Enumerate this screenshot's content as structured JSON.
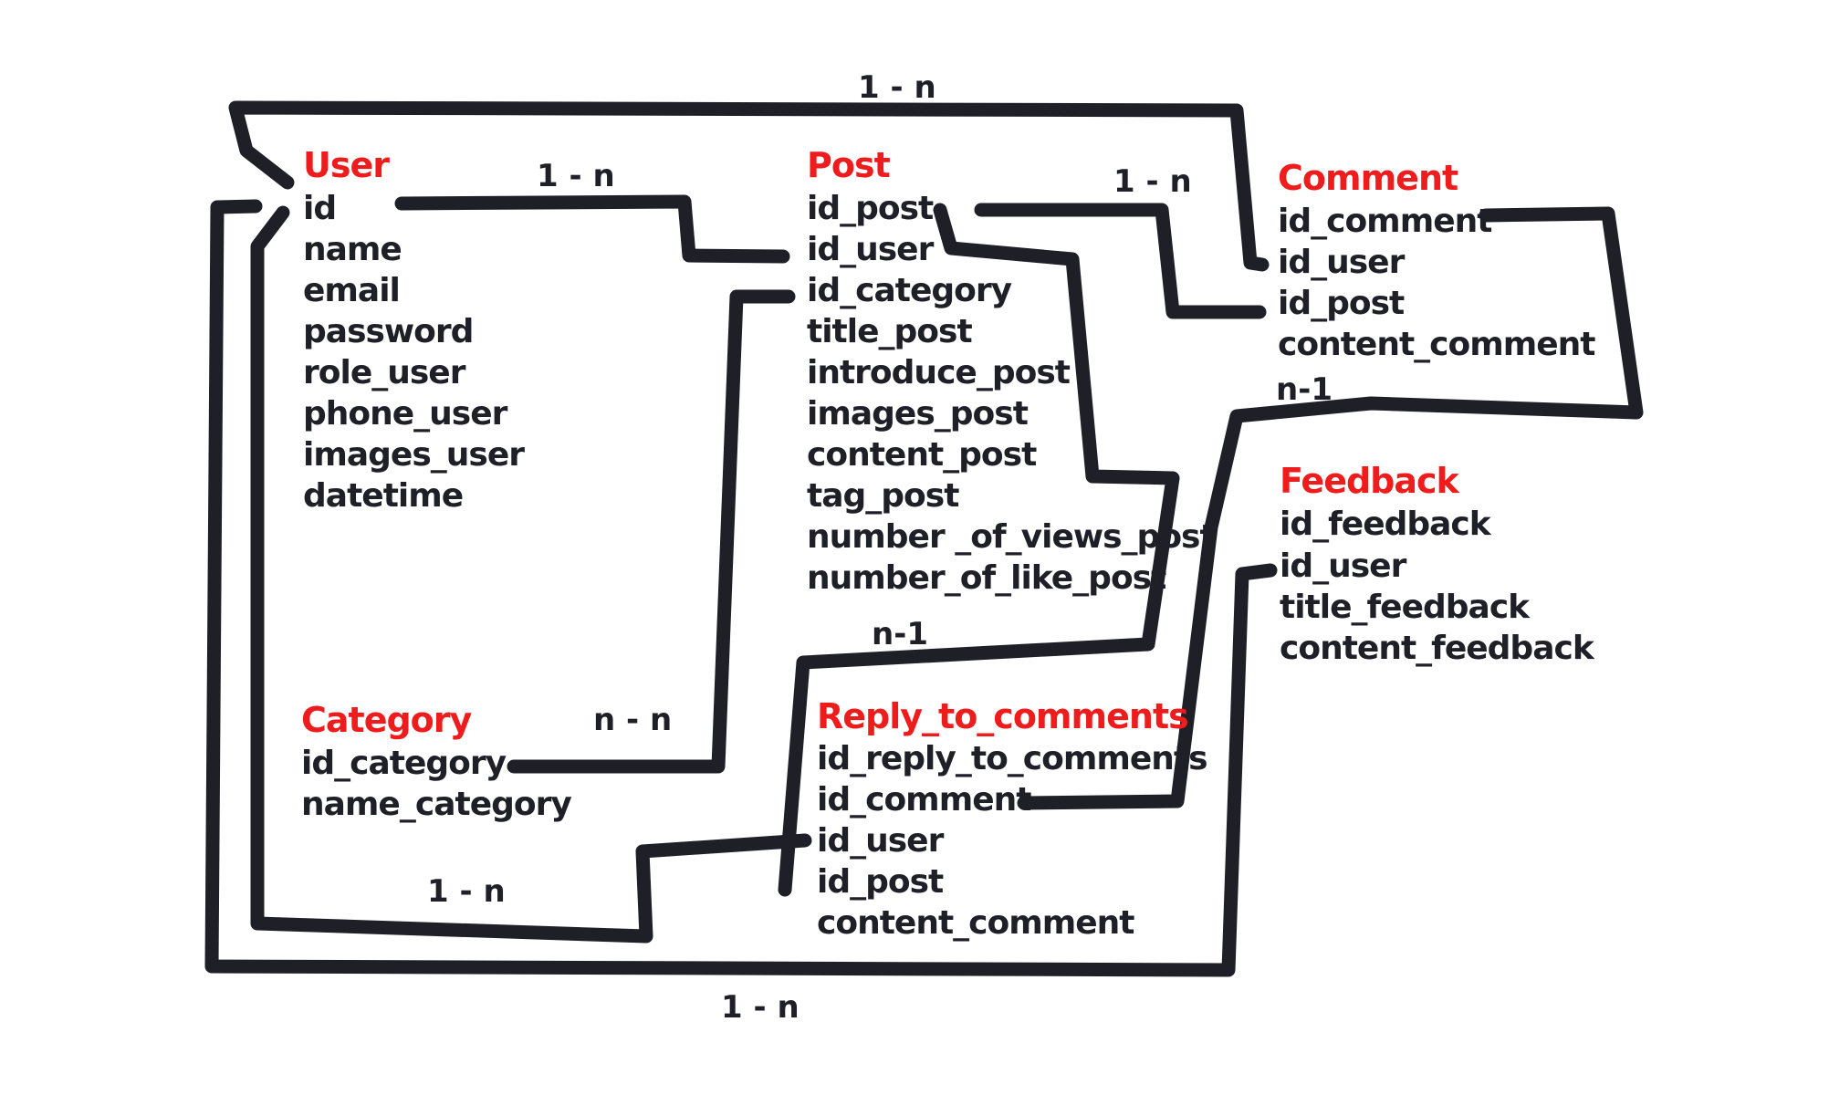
{
  "entities": {
    "user": {
      "title": "User",
      "fields": [
        "id",
        "name",
        "email",
        "password",
        "role_user",
        "phone_user",
        "images_user",
        "datetime"
      ]
    },
    "post": {
      "title": "Post",
      "fields": [
        "id_post",
        "id_user",
        "id_category",
        "title_post",
        "introduce_post",
        "images_post",
        "content_post",
        "tag_post",
        "number _of_views_post",
        "number_of_like_post"
      ]
    },
    "comment": {
      "title": "Comment",
      "fields": [
        "id_comment",
        "id_user",
        "id_post",
        "content_comment"
      ]
    },
    "feedback": {
      "title": "Feedback",
      "fields": [
        "id_feedback",
        "id_user",
        "title_feedback",
        "content_feedback"
      ]
    },
    "category": {
      "title": "Category",
      "fields": [
        "id_category",
        "name_category"
      ]
    },
    "reply": {
      "title": "Reply_to_comments",
      "fields": [
        "id_reply_to_comments",
        "id_comment",
        "id_user",
        "id_post",
        "content_comment"
      ]
    }
  },
  "relations": {
    "user_comment": "1 - n",
    "user_post": "1 - n",
    "post_comment": "1 - n",
    "comment_reply": "n-1",
    "post_reply": "n-1",
    "category_post": "n - n",
    "user_reply": "1 - n",
    "user_feedback": "1 - n"
  },
  "colors": {
    "entity_title": "#ee1c1c",
    "text": "#1f1f27",
    "line": "#1f1f27",
    "background": "#ffffff"
  }
}
